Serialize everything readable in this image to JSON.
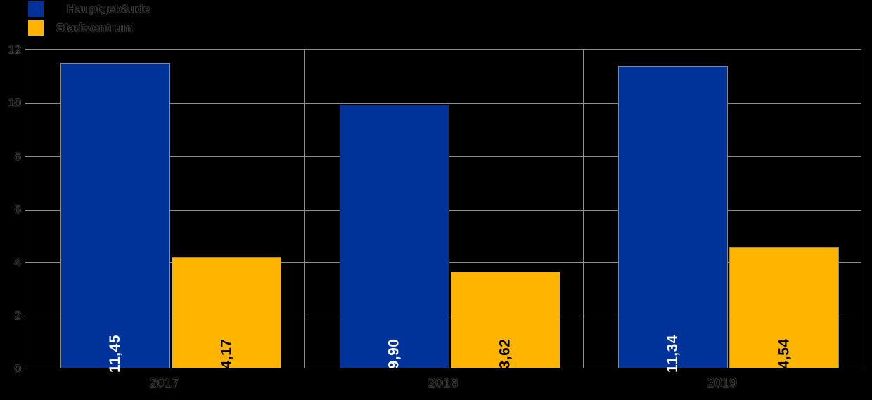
{
  "colors": {
    "background": "#000000",
    "series_blue": "#003399",
    "series_orange": "#FFB400",
    "grid": "#8c8c8c",
    "bar_border": "#8a8a8a",
    "value_label_on_blue": "#ffffff",
    "value_label_on_orange": "#000000",
    "axis_text": "#000000"
  },
  "legend": {
    "items": [
      {
        "label": "Hauptgebäude",
        "color": "#003399"
      },
      {
        "label": "Stadtzentrum",
        "color": "#FFB400"
      }
    ]
  },
  "chart_data": {
    "type": "bar",
    "categories": [
      "2017",
      "2018",
      "2019"
    ],
    "series": [
      {
        "name": "Hauptgebäude",
        "color": "#003399",
        "values": [
          11.45,
          9.9,
          11.34
        ],
        "value_labels": [
          "11,45",
          "9,90",
          "11,34"
        ],
        "label_color": "#ffffff"
      },
      {
        "name": "Stadtzentrum",
        "color": "#FFB400",
        "values": [
          4.17,
          3.62,
          4.54
        ],
        "value_labels": [
          "4,17",
          "3,62",
          "4,54"
        ],
        "label_color": "#000000"
      }
    ],
    "title": "",
    "xlabel": "",
    "ylabel": "",
    "ylim": [
      0,
      12
    ],
    "yticks": [
      0,
      2,
      4,
      6,
      8,
      10,
      12
    ],
    "ytick_labels": [
      "0",
      "2",
      "4",
      "6",
      "8",
      "10",
      "12"
    ],
    "grid": true,
    "panel_dividers_between_categories": true,
    "legend_position": "top-left",
    "value_labels_rotated_90": true,
    "decimal_separator": ","
  }
}
